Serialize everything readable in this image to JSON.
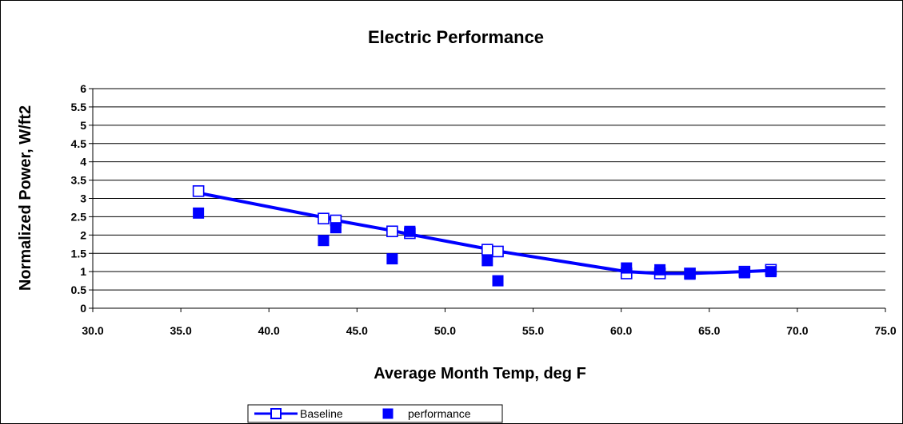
{
  "chart_data": {
    "type": "scatter",
    "title": "Electric Performance",
    "xlabel": "Average Month Temp, deg F",
    "ylabel": "Normalized Power, W/ft2",
    "xlim": [
      30,
      75
    ],
    "ylim": [
      0,
      6
    ],
    "x_ticks": [
      "30.0",
      "35.0",
      "40.0",
      "45.0",
      "50.0",
      "55.0",
      "60.0",
      "65.0",
      "70.0",
      "75.0"
    ],
    "y_ticks": [
      "0",
      "0.5",
      "1",
      "1.5",
      "2",
      "2.5",
      "3",
      "3.5",
      "4",
      "4.5",
      "5",
      "5.5",
      "6"
    ],
    "grid": "horizontal",
    "legend_position": "bottom",
    "colors": {
      "series": "#0000ff",
      "axis": "#000000"
    },
    "series": [
      {
        "name": "Baseline",
        "marker": "open-square",
        "line": true,
        "x": [
          36.0,
          43.1,
          43.8,
          47.0,
          48.0,
          52.4,
          53.0,
          60.3,
          62.2,
          63.9,
          67.0,
          68.5
        ],
        "y": [
          3.2,
          2.45,
          2.4,
          2.1,
          2.05,
          1.6,
          1.55,
          0.95,
          0.95,
          0.95,
          1.0,
          1.05
        ]
      },
      {
        "name": "performance",
        "marker": "filled-square",
        "line": false,
        "x": [
          36.0,
          43.1,
          43.8,
          47.0,
          48.0,
          52.4,
          53.0,
          60.3,
          62.2,
          63.9,
          67.0,
          68.5
        ],
        "y": [
          2.6,
          1.85,
          2.2,
          1.35,
          2.1,
          1.3,
          0.75,
          1.1,
          1.05,
          0.93,
          0.97,
          1.0
        ]
      }
    ],
    "trendline": {
      "series": "Baseline",
      "x": [
        36.0,
        43.1,
        43.8,
        47.0,
        48.0,
        52.4,
        53.0,
        60.3,
        62.2,
        63.9,
        67.0,
        68.5
      ],
      "y": [
        3.15,
        2.48,
        2.4,
        2.12,
        2.02,
        1.62,
        1.56,
        1.0,
        0.95,
        0.95,
        1.0,
        1.03
      ]
    }
  }
}
